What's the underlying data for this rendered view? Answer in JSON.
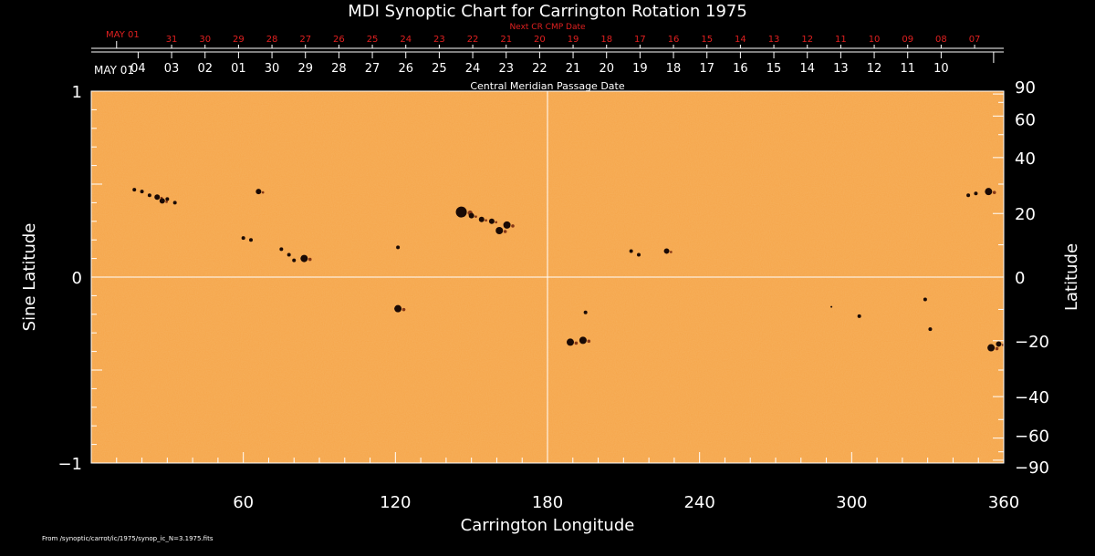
{
  "chart_data": {
    "type": "heatmap",
    "title": "MDI Synoptic Chart for Carrington Rotation 1975",
    "xlabel": "Carrington Longitude",
    "ylabel_left": "Sine Latitude",
    "ylabel_right": "Latitude",
    "xlim": [
      0,
      360
    ],
    "ylim": [
      -1,
      1
    ],
    "x_ticks": [
      60,
      120,
      180,
      240,
      300,
      360
    ],
    "y_left_ticks": [
      {
        "value": 1,
        "label": "1"
      },
      {
        "value": 0,
        "label": "0"
      },
      {
        "value": -1,
        "label": "−1"
      }
    ],
    "y_right_ticks": [
      {
        "deg": 90,
        "label": "90"
      },
      {
        "deg": 60,
        "label": "60"
      },
      {
        "deg": 40,
        "label": "40"
      },
      {
        "deg": 20,
        "label": "20"
      },
      {
        "deg": 0,
        "label": "0"
      },
      {
        "deg": -20,
        "label": "−20"
      },
      {
        "deg": -40,
        "label": "−40"
      },
      {
        "deg": -60,
        "label": "−60"
      },
      {
        "deg": -90,
        "label": "−90"
      }
    ],
    "top_axis": {
      "title": "Central Meridian Passage Date",
      "first_label": "MAY 01",
      "dates": [
        "04",
        "03",
        "02",
        "01",
        "30",
        "29",
        "28",
        "27",
        "26",
        "25",
        "24",
        "23",
        "22",
        "21",
        "20",
        "19",
        "18",
        "17",
        "16",
        "15",
        "14",
        "13",
        "12",
        "11",
        "10"
      ],
      "date_longitudes": [
        341.5,
        328.3,
        315.1,
        301.9,
        288.7,
        275.5,
        262.3,
        249.1,
        235.9,
        222.7,
        209.5,
        196.3,
        183.1,
        169.9,
        156.7,
        143.5,
        130.3,
        117.1,
        103.9,
        90.7,
        77.5,
        64.3,
        51.1,
        37.9,
        24.7
      ]
    },
    "next_rotation_axis": {
      "title": "Next CR CMP Date",
      "first_label": "MAY 01",
      "dates": [
        "31",
        "30",
        "29",
        "28",
        "27",
        "26",
        "25",
        "24",
        "23",
        "22",
        "21",
        "20",
        "19",
        "18",
        "17",
        "16",
        "15",
        "14",
        "13",
        "12",
        "11",
        "10",
        "09",
        "08",
        "07"
      ],
      "date_longitudes": [
        328.3,
        315.1,
        301.9,
        288.7,
        275.5,
        262.3,
        249.1,
        235.9,
        222.7,
        209.5,
        196.3,
        183.1,
        169.9,
        156.7,
        143.5,
        130.3,
        117.1,
        103.9,
        90.7,
        77.5,
        64.3,
        51.1,
        37.9,
        24.7,
        11.5
      ]
    },
    "sunspots": [
      {
        "lon": 17,
        "sinlat": 0.47,
        "size": 2
      },
      {
        "lon": 20,
        "sinlat": 0.46,
        "size": 2
      },
      {
        "lon": 23,
        "sinlat": 0.44,
        "size": 2
      },
      {
        "lon": 26,
        "sinlat": 0.43,
        "size": 3
      },
      {
        "lon": 28,
        "sinlat": 0.41,
        "size": 3
      },
      {
        "lon": 30,
        "sinlat": 0.42,
        "size": 2
      },
      {
        "lon": 33,
        "sinlat": 0.4,
        "size": 2
      },
      {
        "lon": 66,
        "sinlat": 0.46,
        "size": 3
      },
      {
        "lon": 60,
        "sinlat": 0.21,
        "size": 2
      },
      {
        "lon": 63,
        "sinlat": 0.2,
        "size": 2
      },
      {
        "lon": 75,
        "sinlat": 0.15,
        "size": 2
      },
      {
        "lon": 78,
        "sinlat": 0.12,
        "size": 2
      },
      {
        "lon": 80,
        "sinlat": 0.09,
        "size": 2
      },
      {
        "lon": 84,
        "sinlat": 0.1,
        "size": 4
      },
      {
        "lon": 121,
        "sinlat": 0.16,
        "size": 2
      },
      {
        "lon": 146,
        "sinlat": 0.35,
        "size": 6
      },
      {
        "lon": 150,
        "sinlat": 0.33,
        "size": 3
      },
      {
        "lon": 154,
        "sinlat": 0.31,
        "size": 3
      },
      {
        "lon": 158,
        "sinlat": 0.3,
        "size": 3
      },
      {
        "lon": 161,
        "sinlat": 0.25,
        "size": 4
      },
      {
        "lon": 164,
        "sinlat": 0.28,
        "size": 4
      },
      {
        "lon": 121,
        "sinlat": -0.17,
        "size": 4
      },
      {
        "lon": 213,
        "sinlat": 0.14,
        "size": 2
      },
      {
        "lon": 216,
        "sinlat": 0.12,
        "size": 2
      },
      {
        "lon": 227,
        "sinlat": 0.14,
        "size": 3
      },
      {
        "lon": 189,
        "sinlat": -0.35,
        "size": 4
      },
      {
        "lon": 194,
        "sinlat": -0.34,
        "size": 4
      },
      {
        "lon": 195,
        "sinlat": -0.19,
        "size": 2
      },
      {
        "lon": 292,
        "sinlat": -0.16,
        "size": 1
      },
      {
        "lon": 303,
        "sinlat": -0.21,
        "size": 2
      },
      {
        "lon": 329,
        "sinlat": -0.12,
        "size": 2
      },
      {
        "lon": 331,
        "sinlat": -0.28,
        "size": 2
      },
      {
        "lon": 346,
        "sinlat": 0.44,
        "size": 2
      },
      {
        "lon": 349,
        "sinlat": 0.45,
        "size": 2
      },
      {
        "lon": 354,
        "sinlat": 0.46,
        "size": 4
      },
      {
        "lon": 355,
        "sinlat": -0.38,
        "size": 4
      },
      {
        "lon": 358,
        "sinlat": -0.36,
        "size": 3
      }
    ],
    "background_color": "#f5a54a",
    "spot_color": "#1a0a05",
    "gridline_color": "#ffffff"
  },
  "footer": {
    "source_text": "From /synoptic/carrot/ic/1975/synop_ic_N=3.1975.fits"
  }
}
